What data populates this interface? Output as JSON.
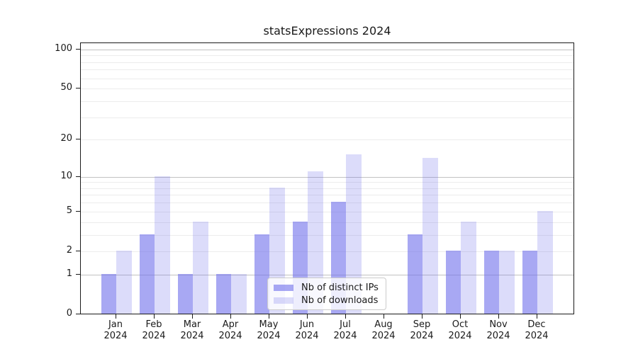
{
  "chart_data": {
    "type": "bar",
    "title": "statsExpressions 2024",
    "categories": [
      "Jan",
      "Feb",
      "Mar",
      "Apr",
      "May",
      "Jun",
      "Jul",
      "Aug",
      "Sep",
      "Oct",
      "Nov",
      "Dec"
    ],
    "category_year": "2024",
    "series": [
      {
        "name": "Nb of distinct IPs",
        "color": "rgba(110,110,235,0.60)",
        "values": [
          1,
          3,
          1,
          1,
          3,
          4,
          6,
          0,
          3,
          2,
          2,
          2
        ]
      },
      {
        "name": "Nb of downloads",
        "color": "rgba(110,110,235,0.24)",
        "values": [
          2,
          10,
          4,
          1,
          8,
          11,
          15,
          0,
          14,
          4,
          2,
          5
        ]
      }
    ],
    "y_axis": {
      "scale": "log1p",
      "ticks": [
        0,
        1,
        2,
        5,
        10,
        20,
        50,
        100
      ],
      "max_value": 113,
      "grid_major": [
        1,
        10,
        100
      ],
      "grid_minor": [
        2,
        3,
        4,
        5,
        6,
        7,
        8,
        9,
        20,
        30,
        40,
        50,
        60,
        70,
        80,
        90
      ]
    },
    "legend_position": "bottom-center-inside",
    "grid": true,
    "colors": {
      "spine": "#1a1a1a",
      "grid_major": "#c2c2c2",
      "grid_minor": "#ececec",
      "text": "#1a1a1a",
      "legend_border": "#cccccc"
    }
  }
}
